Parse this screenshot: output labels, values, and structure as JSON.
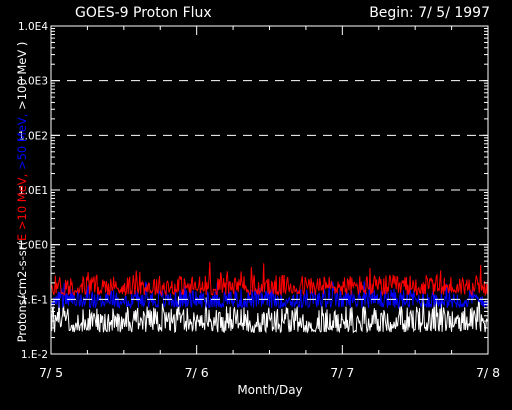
{
  "chart_data": {
    "type": "line",
    "title": "GOES-9 Proton Flux",
    "begin_label": "Begin: 7/ 5/ 1997",
    "xlabel": "Month/Day",
    "ylabel_parts": [
      {
        "text": "Protons/cm2-s-sr(",
        "color": "#ffffff"
      },
      {
        "text": "E >10 MeV, ",
        "color": "#ff0000"
      },
      {
        "text": ">50 MeV, ",
        "color": "#0000ff"
      },
      {
        "text": ">100 MeV )",
        "color": "#ffffff"
      }
    ],
    "y_scale": "log",
    "ylim": [
      0.01,
      10000
    ],
    "y_ticks": [
      {
        "value": 10000,
        "label": "1.0E4"
      },
      {
        "value": 1000,
        "label": "1.0E3"
      },
      {
        "value": 100,
        "label": "1.0E2"
      },
      {
        "value": 10,
        "label": "1.0E1"
      },
      {
        "value": 1,
        "label": "1.0E0"
      },
      {
        "value": 0.1,
        "label": "1.E-1"
      },
      {
        "value": 0.01,
        "label": "1.E-2"
      }
    ],
    "xlim": [
      0,
      3
    ],
    "x_ticks": [
      {
        "value": 0,
        "label": "7/ 5"
      },
      {
        "value": 1,
        "label": "7/ 6"
      },
      {
        "value": 2,
        "label": "7/ 7"
      },
      {
        "value": 3,
        "label": "7/ 8"
      }
    ],
    "grid": "dashed horizontal at decades 1e-1 to 1e3",
    "series": [
      {
        "name": "E >10 MeV",
        "color": "#ff0000",
        "typical_min": 0.12,
        "typical_max": 0.28,
        "peak": 0.5
      },
      {
        "name": ">50 MeV",
        "color": "#0000ff",
        "typical_min": 0.07,
        "typical_max": 0.16,
        "peak": 0.22
      },
      {
        "name": ">100 MeV",
        "color": "#ffffff",
        "typical_min": 0.025,
        "typical_max": 0.075,
        "peak": 0.12
      }
    ]
  }
}
